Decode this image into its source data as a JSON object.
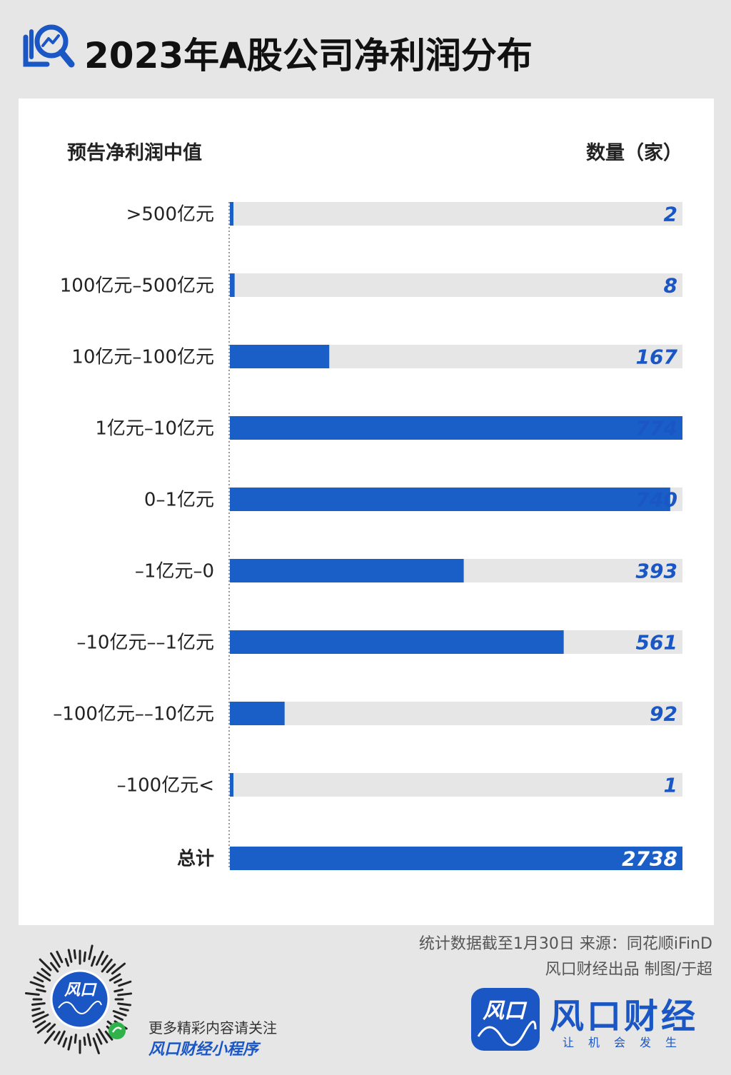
{
  "header": {
    "title": "2023年A股公司净利润分布"
  },
  "columns": {
    "left": "预告净利润中值",
    "right": "数量（家）"
  },
  "colors": {
    "bar": "#1a5fc8",
    "track": "#e6e6e6",
    "value_text": "#1a56c4",
    "total_text": "#ffffff"
  },
  "chart_data": {
    "type": "bar",
    "orientation": "horizontal",
    "categories": [
      ">500亿元",
      "100亿元–500亿元",
      "10亿元–100亿元",
      "1亿元–10亿元",
      "0–1亿元",
      "–1亿元–0",
      "–10亿元––1亿元",
      "–100亿元––10亿元",
      "–100亿元<",
      "总计"
    ],
    "values": [
      2,
      8,
      167,
      774,
      740,
      393,
      561,
      92,
      1,
      2738
    ],
    "title": "2023年A股公司净利润分布",
    "xlabel": "数量（家）",
    "ylabel": "预告净利润中值",
    "xlim": [
      0,
      2738
    ],
    "grid": false
  },
  "footer": {
    "note1": "统计数据截至1月30日    来源：同花顺iFinD",
    "note2": "风口财经出品    制图/于超",
    "promo_line1": "更多精彩内容请关注",
    "promo_line2": "风口财经小程序",
    "brand_name": "风口财经",
    "brand_slogan": "让机会发生",
    "logo_text": "风口"
  }
}
